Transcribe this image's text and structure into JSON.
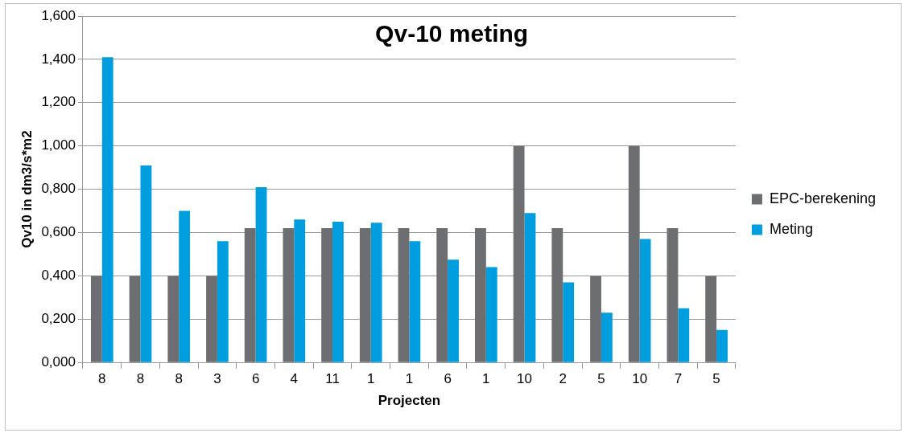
{
  "chart_data": {
    "type": "bar",
    "title": "Qv-10 meting",
    "xlabel": "Projecten",
    "ylabel": "Qv10 in dm3/s*m2",
    "categories": [
      "8",
      "8",
      "8",
      "3",
      "6",
      "4",
      "11",
      "1",
      "1",
      "6",
      "1",
      "10",
      "2",
      "5",
      "10",
      "7",
      "5"
    ],
    "series": [
      {
        "name": "EPC-berekening",
        "color": "#6d6e71",
        "values": [
          0.4,
          0.4,
          0.4,
          0.4,
          0.62,
          0.62,
          0.62,
          0.62,
          0.62,
          0.62,
          0.62,
          1.0,
          0.62,
          0.4,
          1.0,
          0.62,
          0.4
        ]
      },
      {
        "name": "Meting",
        "color": "#009ddf",
        "values": [
          1.41,
          0.91,
          0.7,
          0.56,
          0.81,
          0.66,
          0.65,
          0.645,
          0.56,
          0.475,
          0.44,
          0.69,
          0.37,
          0.23,
          0.57,
          0.25,
          0.15
        ]
      }
    ],
    "ylim": [
      0,
      1.6
    ],
    "yticks": [
      {
        "value": 0,
        "label": "0,000"
      },
      {
        "value": 0.2,
        "label": "0,200"
      },
      {
        "value": 0.4,
        "label": "0,400"
      },
      {
        "value": 0.6,
        "label": "0,600"
      },
      {
        "value": 0.8,
        "label": "0,800"
      },
      {
        "value": 1.0,
        "label": "1,000"
      },
      {
        "value": 1.2,
        "label": "1,200"
      },
      {
        "value": 1.4,
        "label": "1,400"
      },
      {
        "value": 1.6,
        "label": "1,600"
      }
    ],
    "grid": "y",
    "legend": "right"
  }
}
